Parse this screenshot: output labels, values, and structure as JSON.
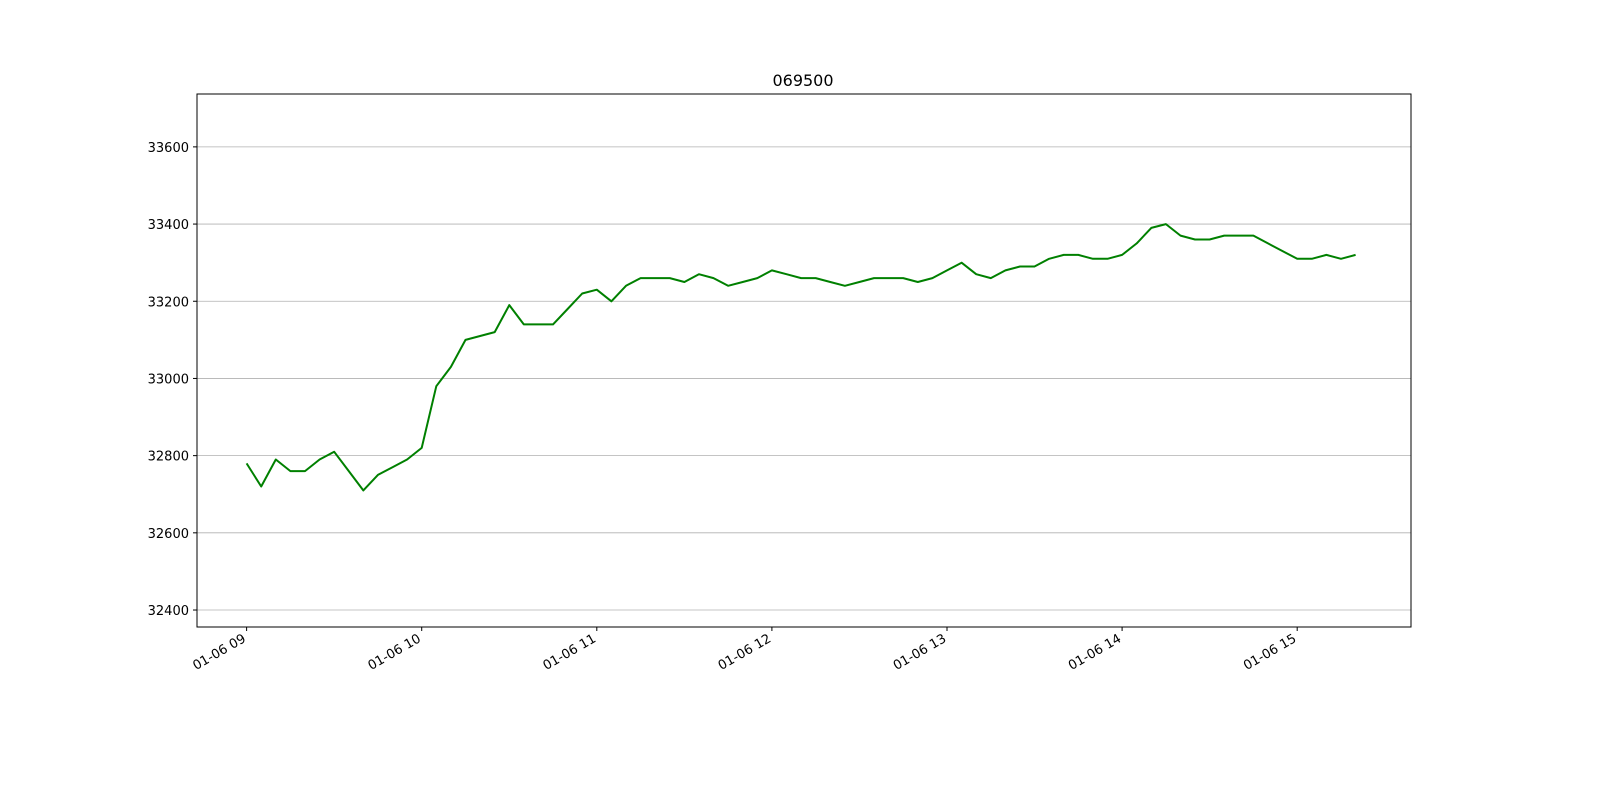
{
  "chart_data": {
    "type": "line",
    "title": "069500",
    "x": [
      "01-06 09:00",
      "01-06 09:05",
      "01-06 09:10",
      "01-06 09:15",
      "01-06 09:20",
      "01-06 09:25",
      "01-06 09:30",
      "01-06 09:35",
      "01-06 09:40",
      "01-06 09:45",
      "01-06 09:50",
      "01-06 09:55",
      "01-06 10:00",
      "01-06 10:05",
      "01-06 10:10",
      "01-06 10:15",
      "01-06 10:20",
      "01-06 10:25",
      "01-06 10:30",
      "01-06 10:35",
      "01-06 10:40",
      "01-06 10:45",
      "01-06 10:50",
      "01-06 10:55",
      "01-06 11:00",
      "01-06 11:05",
      "01-06 11:10",
      "01-06 11:15",
      "01-06 11:20",
      "01-06 11:25",
      "01-06 11:30",
      "01-06 11:35",
      "01-06 11:40",
      "01-06 11:45",
      "01-06 11:50",
      "01-06 11:55",
      "01-06 12:00",
      "01-06 12:05",
      "01-06 12:10",
      "01-06 12:15",
      "01-06 12:20",
      "01-06 12:25",
      "01-06 12:30",
      "01-06 12:35",
      "01-06 12:40",
      "01-06 12:45",
      "01-06 12:50",
      "01-06 12:55",
      "01-06 13:00",
      "01-06 13:05",
      "01-06 13:10",
      "01-06 13:15",
      "01-06 13:20",
      "01-06 13:25",
      "01-06 13:30",
      "01-06 13:35",
      "01-06 13:40",
      "01-06 13:45",
      "01-06 13:50",
      "01-06 13:55",
      "01-06 14:00",
      "01-06 14:05",
      "01-06 14:10",
      "01-06 14:15",
      "01-06 14:20",
      "01-06 14:25",
      "01-06 14:30",
      "01-06 14:35",
      "01-06 14:40",
      "01-06 14:45",
      "01-06 14:50",
      "01-06 14:55",
      "01-06 15:00",
      "01-06 15:05",
      "01-06 15:10",
      "01-06 15:15",
      "01-06 15:20"
    ],
    "series": [
      {
        "color": "#008000",
        "values": [
          32780,
          32720,
          32790,
          32760,
          32760,
          32790,
          32810,
          32760,
          32710,
          32750,
          32770,
          32790,
          32820,
          32980,
          33030,
          33100,
          33110,
          33120,
          33190,
          33140,
          33140,
          33140,
          33180,
          33220,
          33230,
          33200,
          33240,
          33260,
          33260,
          33260,
          33250,
          33270,
          33260,
          33240,
          33250,
          33260,
          33280,
          33270,
          33260,
          33260,
          33250,
          33240,
          33250,
          33260,
          33260,
          33260,
          33250,
          33260,
          33280,
          33300,
          33270,
          33260,
          33280,
          33290,
          33290,
          33310,
          33320,
          33320,
          33310,
          33310,
          33320,
          33350,
          33390,
          33400,
          33370,
          33360,
          33360,
          33370,
          33370,
          33370,
          33350,
          33330,
          33310,
          33310,
          33320,
          33310,
          33320
        ]
      }
    ],
    "xlim": [
      "01-06 08:43",
      "01-06 15:39"
    ],
    "xticks": [
      "01-06 09",
      "01-06 10",
      "01-06 11",
      "01-06 12",
      "01-06 13",
      "01-06 14",
      "01-06 15"
    ],
    "ylim": [
      32356,
      33737
    ],
    "yticks": [
      32400,
      32600,
      32800,
      33000,
      33200,
      33400,
      33600
    ],
    "grid": "y"
  }
}
